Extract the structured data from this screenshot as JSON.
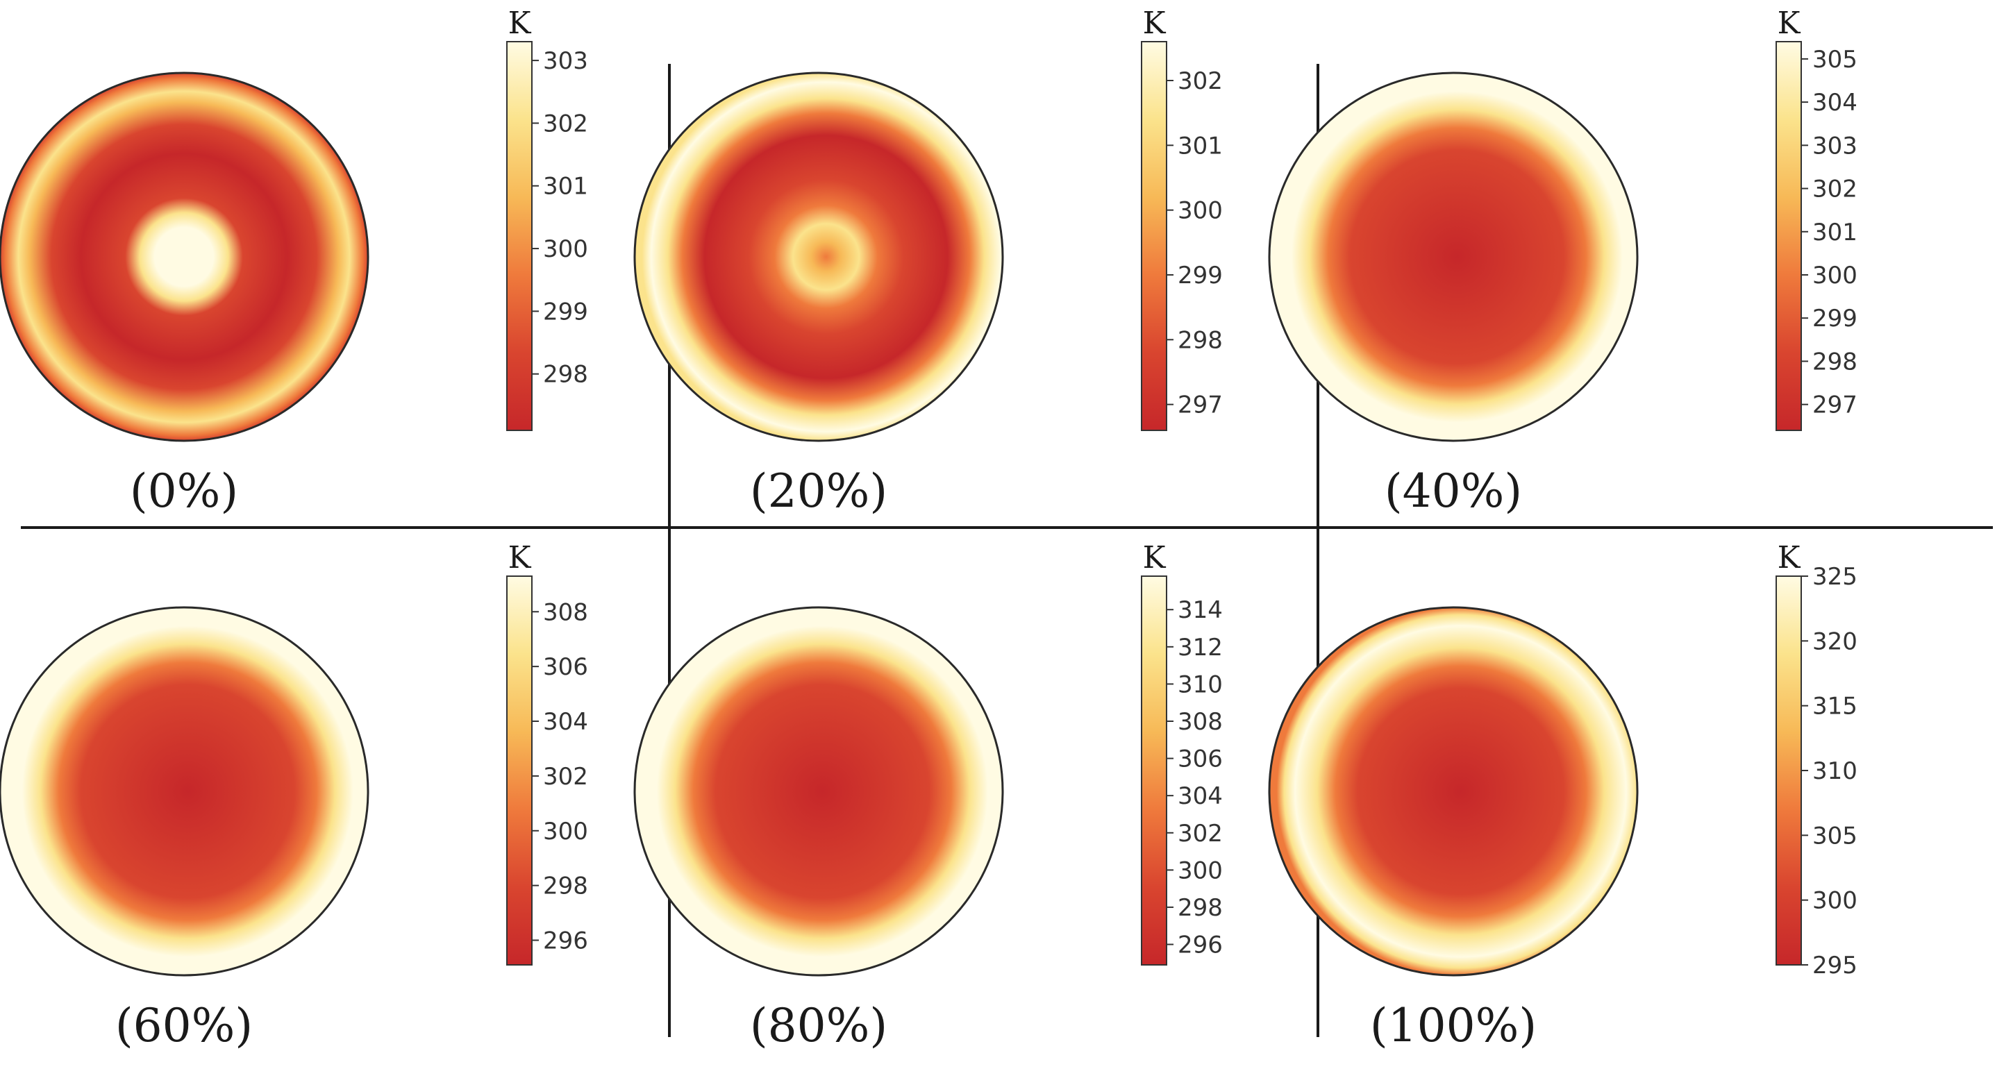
{
  "chart_data": [
    {
      "type": "heatmap",
      "caption": "(0%)",
      "unit": "K",
      "ticks": [
        "298",
        "299",
        "300",
        "301",
        "302",
        "303"
      ],
      "range": [
        297.1,
        303.3
      ],
      "pattern": "ring-hot-center",
      "colors": [
        "#c6272a",
        "#d9452f",
        "#ef7a3c",
        "#f7b957",
        "#fbe38c",
        "#fffbe3"
      ]
    },
    {
      "type": "heatmap",
      "caption": "(20%)",
      "unit": "K",
      "ticks": [
        "297",
        "298",
        "299",
        "300",
        "301",
        "302"
      ],
      "range": [
        296.6,
        302.6
      ],
      "pattern": "ring-warm-center",
      "colors": [
        "#c6272a",
        "#d9452f",
        "#ef7a3c",
        "#f7b957",
        "#fbe38c",
        "#fffbe3"
      ]
    },
    {
      "type": "heatmap",
      "caption": "(40%)",
      "unit": "K",
      "ticks": [
        "297",
        "298",
        "299",
        "300",
        "301",
        "302",
        "303",
        "304",
        "305"
      ],
      "range": [
        296.4,
        305.4
      ],
      "pattern": "hot-rim",
      "colors": [
        "#c6272a",
        "#d9452f",
        "#ef7a3c",
        "#f7b957",
        "#fbe38c",
        "#fffbe3"
      ]
    },
    {
      "type": "heatmap",
      "caption": "(60%)",
      "unit": "K",
      "ticks": [
        "296",
        "298",
        "300",
        "302",
        "304",
        "306",
        "308"
      ],
      "range": [
        295.1,
        309.3
      ],
      "pattern": "hot-rim",
      "colors": [
        "#c6272a",
        "#d9452f",
        "#ef7a3c",
        "#f7b957",
        "#fbe38c",
        "#fffbe3"
      ]
    },
    {
      "type": "heatmap",
      "caption": "(80%)",
      "unit": "K",
      "ticks": [
        "296",
        "298",
        "300",
        "302",
        "304",
        "306",
        "308",
        "310",
        "312",
        "314"
      ],
      "range": [
        294.9,
        315.8
      ],
      "pattern": "hot-rim",
      "colors": [
        "#c6272a",
        "#d9452f",
        "#ef7a3c",
        "#f7b957",
        "#fbe38c",
        "#fffbe3"
      ]
    },
    {
      "type": "heatmap",
      "caption": "(100%)",
      "unit": "K",
      "ticks": [
        "295",
        "300",
        "305",
        "310",
        "315",
        "320",
        "325"
      ],
      "range": [
        295.0,
        325.0
      ],
      "pattern": "hot-rim-edge",
      "colors": [
        "#c6272a",
        "#d9452f",
        "#ef7a3c",
        "#f7b957",
        "#fbe38c",
        "#fffbe3"
      ]
    }
  ]
}
